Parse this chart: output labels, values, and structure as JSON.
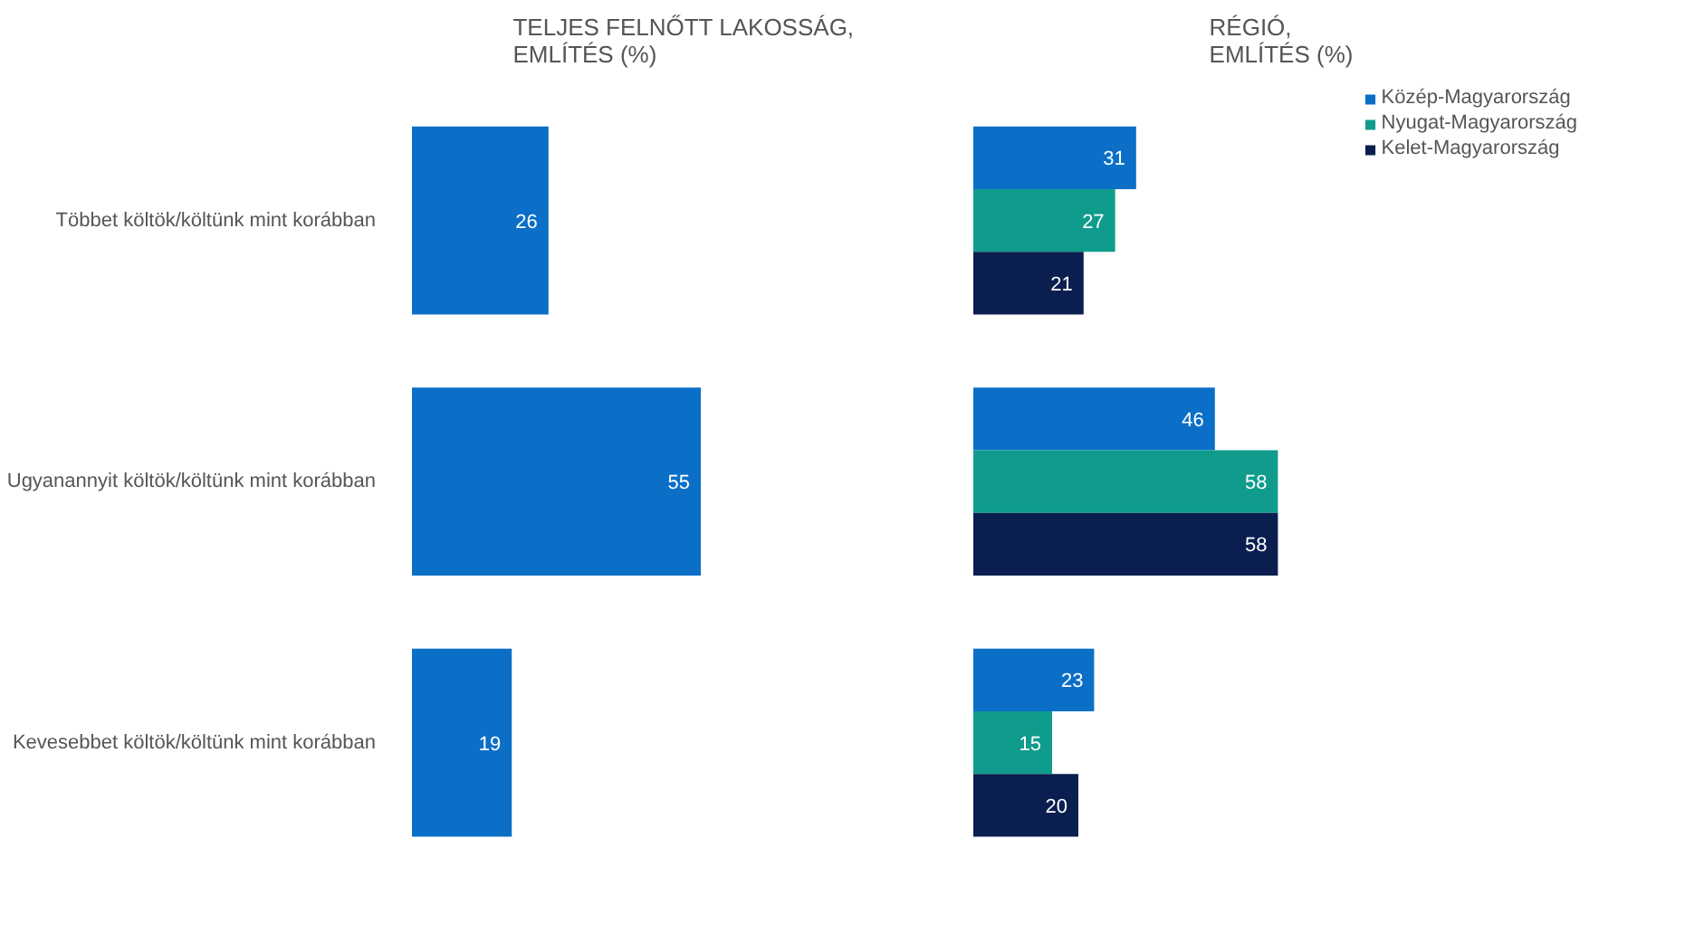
{
  "chart_data": [
    {
      "type": "bar",
      "orientation": "horizontal",
      "title": "TELJES FELNŐTT LAKOSSÁG,\nEMLÍTÉS (%)",
      "categories": [
        "Többet költök/költünk mint korábban",
        "Ugyanannyit költök/költünk mint korábban",
        "Kevesebbet költök/költünk mint korábban"
      ],
      "values": [
        26,
        55,
        19
      ],
      "color": "#0b6fc7",
      "data_labels": true,
      "tick_labels": "y",
      "grid": false,
      "legend": false
    },
    {
      "type": "bar",
      "orientation": "horizontal",
      "title": "RÉGIÓ,\nEMLÍTÉS (%)",
      "categories": [
        null,
        null,
        null
      ],
      "series": [
        {
          "name": "Közép-Magyarország",
          "color": "#0b6fc7",
          "values": [
            31,
            46,
            23
          ]
        },
        {
          "name": "Nyugat-Magyarország",
          "color": "#109c8c",
          "values": [
            27,
            58,
            15
          ]
        },
        {
          "name": "Kelet-Magyarország",
          "color": "#0a1f4f",
          "values": [
            21,
            58,
            20
          ]
        }
      ],
      "data_labels": true,
      "tick_labels": false,
      "grid": false,
      "legend": "right"
    }
  ]
}
